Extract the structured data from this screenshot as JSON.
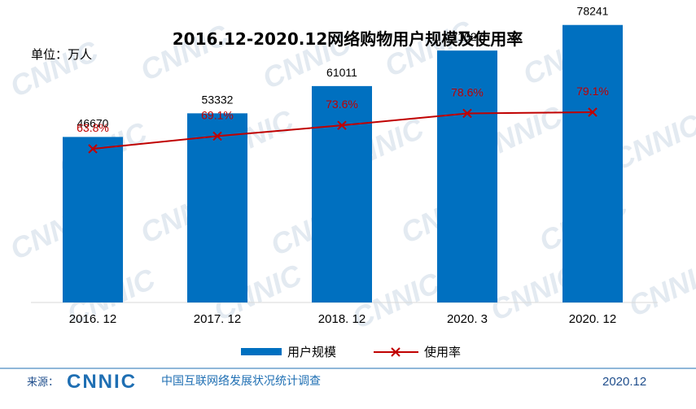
{
  "watermark_text": "CNNIC",
  "unit_label": "单位：万人",
  "chart_data": {
    "type": "bar",
    "title": "2016.12-2020.12网络购物用户规模及使用率",
    "categories": [
      "2016. 12",
      "2017. 12",
      "2018. 12",
      "2020. 3",
      "2020. 12"
    ],
    "series": [
      {
        "name": "用户规模",
        "type": "bar",
        "values": [
          46670,
          53332,
          61011,
          71027,
          78241
        ],
        "color": "#0070c0"
      },
      {
        "name": "使用率",
        "type": "line",
        "values": [
          63.8,
          69.1,
          73.6,
          78.6,
          79.1
        ],
        "labels": [
          "63.8%",
          "69.1%",
          "73.6%",
          "78.6%",
          "79.1%"
        ],
        "color": "#c00000"
      }
    ],
    "bar_ylim": [
      0,
      100000
    ],
    "line_ylim": [
      25,
      90
    ],
    "legend_position": "bottom",
    "grid": false
  },
  "footer": {
    "source_label": "来源：",
    "logo_text": "CNNIC",
    "org_text": "中国互联网络发展状况统计调查",
    "date": "2020.12"
  }
}
